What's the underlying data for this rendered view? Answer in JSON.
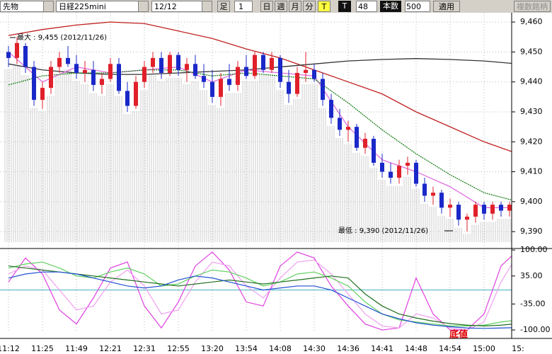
{
  "toolbar": {
    "market": "先物",
    "symbol": "日経225mini",
    "date": "12/12",
    "foot": "足",
    "period": "1",
    "buttons": [
      "日",
      "週",
      "月",
      "分",
      "T"
    ],
    "t_label": "T",
    "count": "48",
    "bars_label": "本数",
    "bars": "500",
    "apply": "適用",
    "multi": "複数銘柄"
  },
  "chart_data": [
    {
      "type": "candlestick",
      "categories": [
        "11:12",
        null,
        null,
        null,
        "11:25",
        null,
        null,
        null,
        "11:49",
        null,
        null,
        null,
        "12:21",
        null,
        null,
        null,
        "12:31",
        null,
        null,
        null,
        "12:55",
        null,
        null,
        null,
        "13:20",
        null,
        null,
        null,
        "13:54",
        null,
        null,
        null,
        "14:08",
        null,
        null,
        null,
        "14:30",
        null,
        null,
        null,
        "14:36",
        null,
        null,
        null,
        "14:41",
        null,
        null,
        null,
        "14:48",
        null,
        null,
        null,
        "14:54",
        null,
        null,
        null,
        "15:00",
        null,
        null,
        null,
        "15:"
      ],
      "open": [
        9450,
        9448,
        9452,
        9445,
        9434,
        9438,
        9445,
        9448,
        9446,
        9443,
        9444,
        9439,
        9441,
        9446,
        9437,
        9432,
        9440,
        9445,
        9448,
        9443,
        9449,
        9444,
        9446,
        9442,
        9440,
        9435,
        9441,
        9439,
        9445,
        9442,
        9449,
        9444,
        9448,
        9440,
        9436,
        9443,
        9444,
        9441,
        9434,
        9428,
        9424,
        9425,
        9418,
        9421,
        9413,
        9410,
        9408,
        9412,
        9413,
        9406,
        9402,
        9403,
        9398,
        9399,
        9394,
        9395,
        9399,
        9396,
        9399,
        9397,
        9399
      ],
      "high": [
        9452,
        9455,
        9453,
        9447,
        9440,
        9447,
        9450,
        9452,
        9449,
        9447,
        9447,
        9443,
        9448,
        9448,
        9440,
        9442,
        9447,
        9450,
        9450,
        9450,
        9450,
        9448,
        9449,
        9446,
        9444,
        9443,
        9446,
        9447,
        9449,
        9450,
        9450,
        9450,
        9449,
        9444,
        9445,
        9450,
        9446,
        9443,
        9436,
        9431,
        9427,
        9426,
        9423,
        9422,
        9416,
        9413,
        9414,
        9415,
        9414,
        9408,
        9405,
        9404,
        9401,
        9400,
        9396,
        9400,
        9400,
        9400,
        9400,
        9400,
        9400
      ],
      "low": [
        9445,
        9446,
        9443,
        9432,
        9431,
        9436,
        9443,
        9445,
        9441,
        9440,
        9437,
        9436,
        9440,
        9436,
        9430,
        9431,
        9438,
        9443,
        9441,
        9442,
        9442,
        9440,
        9441,
        9438,
        9433,
        9432,
        9437,
        9437,
        9441,
        9441,
        9443,
        9443,
        9438,
        9433,
        9435,
        9440,
        9440,
        9432,
        9426,
        9422,
        9420,
        9417,
        9416,
        9412,
        9408,
        9406,
        9406,
        9409,
        9405,
        9400,
        9399,
        9396,
        9395,
        9392,
        9390,
        9393,
        9394,
        9394,
        9395,
        9395,
        9395
      ],
      "close": [
        9448,
        9453,
        9445,
        9434,
        9438,
        9445,
        9448,
        9446,
        9443,
        9444,
        9439,
        9441,
        9446,
        9437,
        9432,
        9440,
        9445,
        9448,
        9443,
        9449,
        9444,
        9446,
        9442,
        9440,
        9435,
        9441,
        9439,
        9445,
        9442,
        9449,
        9444,
        9448,
        9440,
        9436,
        9443,
        9444,
        9441,
        9434,
        9428,
        9424,
        9425,
        9418,
        9421,
        9413,
        9410,
        9408,
        9412,
        9413,
        9406,
        9402,
        9403,
        9398,
        9399,
        9394,
        9395,
        9399,
        9396,
        9399,
        9397,
        9399,
        9396
      ],
      "up_color": "#e0202a",
      "down_color": "#1a28c8",
      "lines": [
        {
          "color": "#c02020",
          "x": [
            0,
            4,
            8,
            12,
            16,
            20,
            24,
            28,
            32,
            36,
            40,
            44,
            48,
            52,
            56,
            60
          ],
          "values": [
            9455.5,
            9457.5,
            9459,
            9460,
            9459.5,
            9457,
            9454.5,
            9451,
            9448,
            9444,
            9440,
            9436,
            9430,
            9425,
            9420,
            9416
          ]
        },
        {
          "color": "#333333",
          "x": [
            0,
            4,
            8,
            12,
            16,
            20,
            24,
            28,
            32,
            36,
            40,
            44,
            48,
            52,
            56,
            60
          ],
          "values": [
            9446,
            9444,
            9443,
            9442.5,
            9442.5,
            9443,
            9443.5,
            9444,
            9445,
            9446,
            9447,
            9447.5,
            9447.8,
            9447.5,
            9447,
            9446
          ]
        },
        {
          "color": "#e070e0",
          "x": [
            0,
            4,
            8,
            12,
            16,
            20,
            24,
            28,
            32,
            36,
            40,
            44,
            48,
            52,
            56,
            60
          ],
          "values": [
            9450,
            9440,
            9445,
            9443,
            9444,
            9445,
            9440,
            9444,
            9443,
            9442,
            9425,
            9414,
            9410,
            9405,
            9398,
            9398
          ]
        },
        {
          "color": "#208020",
          "x": [
            0,
            4,
            8,
            12,
            16,
            20,
            24,
            28,
            32,
            36,
            40,
            44,
            48,
            52,
            56,
            60
          ],
          "values": [
            9439,
            9442,
            9443,
            9443,
            9444,
            9444,
            9442,
            9443,
            9442,
            9441,
            9433,
            9424,
            9416,
            9409,
            9403,
            9400
          ]
        }
      ],
      "ylim": [
        9384.6,
        9463.1
      ],
      "yticks": [
        {
          "value": 9390,
          "label": "9,390"
        },
        {
          "value": 9400,
          "label": "9,400"
        },
        {
          "value": 9410,
          "label": "9,410"
        },
        {
          "value": 9420,
          "label": "9,420"
        },
        {
          "value": 9430,
          "label": "9,430"
        },
        {
          "value": 9440,
          "label": "9,440"
        },
        {
          "value": 9450,
          "label": "9,450"
        },
        {
          "value": 9460,
          "label": "9,460"
        }
      ],
      "grid": true,
      "annotations": [
        "最大 : 9,455 (2012/11/26)",
        "最低 : 9,390 (2012/11/26)"
      ]
    },
    {
      "type": "line",
      "x": [
        0,
        2,
        4,
        6,
        8,
        10,
        12,
        14,
        16,
        18,
        20,
        22,
        24,
        26,
        28,
        30,
        32,
        34,
        36,
        38,
        40,
        42,
        44,
        46,
        48,
        50,
        52,
        54,
        56,
        58,
        60
      ],
      "series": [
        {
          "color": "#e040e0",
          "values": [
            20,
            80,
            40,
            -50,
            -85,
            -20,
            55,
            70,
            -40,
            -95,
            -30,
            60,
            95,
            50,
            -30,
            -40,
            60,
            95,
            80,
            10,
            -40,
            -85,
            -100,
            -95,
            30,
            -60,
            -100,
            -100,
            -60,
            60,
            100
          ]
        },
        {
          "color": "#f0a0f0",
          "values": [
            40,
            60,
            50,
            0,
            -50,
            -40,
            20,
            50,
            10,
            -60,
            -50,
            20,
            70,
            60,
            10,
            -20,
            30,
            70,
            75,
            40,
            -10,
            -60,
            -90,
            -95,
            -60,
            -70,
            -95,
            -100,
            -80,
            20,
            90
          ]
        },
        {
          "color": "#60d060",
          "values": [
            55,
            65,
            70,
            55,
            35,
            30,
            45,
            55,
            40,
            10,
            15,
            35,
            50,
            45,
            30,
            10,
            20,
            40,
            45,
            30,
            10,
            -30,
            -60,
            -75,
            -80,
            -85,
            -90,
            -90,
            -88,
            -80,
            -75
          ]
        },
        {
          "color": "#207020",
          "values": [
            60,
            55,
            50,
            45,
            40,
            35,
            30,
            25,
            20,
            15,
            10,
            15,
            20,
            25,
            20,
            15,
            20,
            25,
            30,
            35,
            30,
            -10,
            -40,
            -60,
            -70,
            -78,
            -84,
            -88,
            -90,
            -88,
            -84
          ]
        },
        {
          "color": "#2050d0",
          "values": [
            30,
            40,
            45,
            45,
            40,
            30,
            20,
            10,
            5,
            10,
            25,
            35,
            30,
            20,
            10,
            0,
            5,
            10,
            10,
            0,
            -20,
            -40,
            -60,
            -72,
            -82,
            -88,
            -92,
            -95,
            -96,
            -95,
            -94
          ]
        }
      ],
      "ylim": [
        -107,
        102
      ],
      "yticks": [
        {
          "value": 100,
          "label": "100.00"
        },
        {
          "value": 35,
          "label": "35.00"
        },
        {
          "value": -35,
          "label": "-35.00"
        },
        {
          "value": -100,
          "label": "-100.00"
        }
      ],
      "reference_line": 0,
      "reference_color": "#40b0c0",
      "annotation": "底値"
    }
  ]
}
